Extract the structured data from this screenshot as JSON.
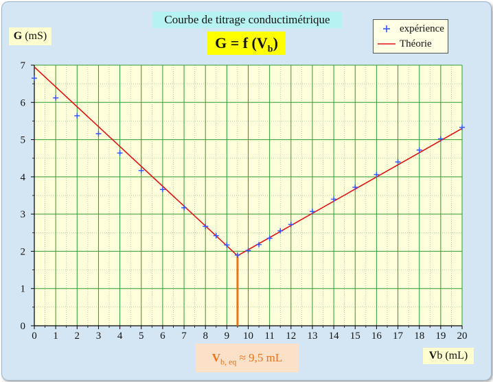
{
  "chart_data": {
    "type": "scatter",
    "title": "Courbe de titrage conductimétrique",
    "subtitle": {
      "prefix": "G = f (V",
      "sub": "b",
      "suffix": ")"
    },
    "ylabel": {
      "bold": "G",
      "rest": " (mS)"
    },
    "xlabel": {
      "bold": "V",
      "rest": "b (mL)"
    },
    "xlim": [
      0,
      20
    ],
    "ylim": [
      0,
      7
    ],
    "xticks": [
      "0",
      "1",
      "2",
      "3",
      "4",
      "5",
      "6",
      "7",
      "8",
      "9",
      "10",
      "11",
      "12",
      "13",
      "14",
      "15",
      "16",
      "17",
      "18",
      "19",
      "20"
    ],
    "yticks": [
      "0",
      "1",
      "2",
      "3",
      "4",
      "5",
      "6",
      "7"
    ],
    "grid": true,
    "legend_position": "top-right",
    "series": [
      {
        "name": "expérience",
        "kind": "points",
        "color": "#3355ff",
        "x": [
          0,
          1,
          2,
          3,
          4,
          5,
          6,
          7,
          8,
          8.5,
          9,
          9.5,
          10,
          10.5,
          11,
          11.5,
          12,
          13,
          14,
          15,
          16,
          17,
          18,
          19,
          20
        ],
        "y": [
          6.65,
          6.12,
          5.64,
          5.16,
          4.64,
          4.17,
          3.66,
          3.17,
          2.67,
          2.42,
          2.17,
          1.9,
          2.02,
          2.18,
          2.35,
          2.55,
          2.72,
          3.07,
          3.4,
          3.72,
          4.06,
          4.4,
          4.72,
          5.02,
          5.33
        ]
      },
      {
        "name": "Théorie",
        "kind": "line",
        "color": "#e01010",
        "x": [
          0,
          9.5,
          20
        ],
        "y": [
          6.95,
          1.88,
          5.3
        ]
      }
    ],
    "annotation": {
      "x": 9.5,
      "color": "#e8741c",
      "label_main": "V",
      "label_sub": "b, eq",
      "label_rest": " ≈ 9,5 mL"
    }
  }
}
